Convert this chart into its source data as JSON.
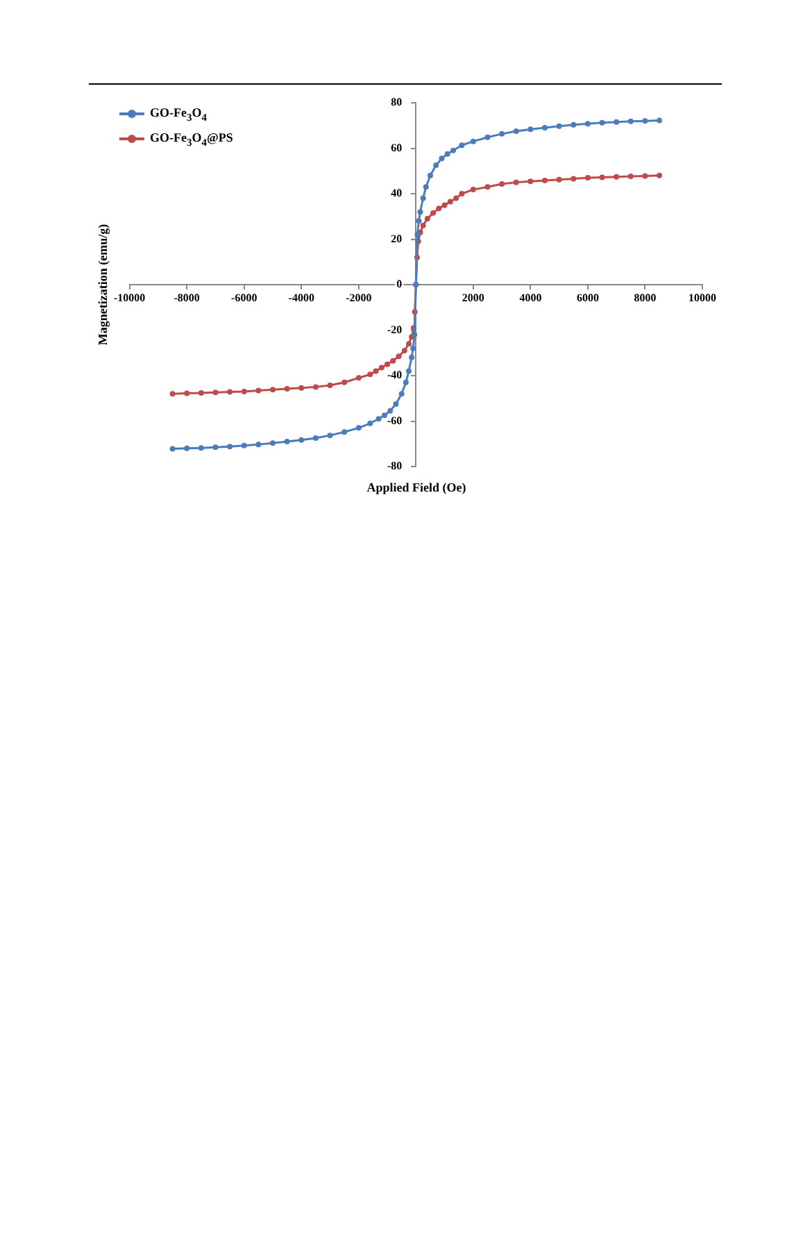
{
  "chart_data": {
    "type": "line",
    "xlabel": "Applied Field (Oe)",
    "ylabel": "Magnetization (emu/g)",
    "xlim": [
      -10000,
      10000
    ],
    "xticks": [
      -10000,
      -8000,
      -6000,
      -4000,
      -2000,
      {
        "value": 0,
        "label": null
      },
      2000,
      4000,
      6000,
      8000,
      10000
    ],
    "ylim": [
      -80,
      80
    ],
    "yticks": [
      -80,
      -60,
      -40,
      -20,
      0,
      20,
      40,
      60,
      80
    ],
    "grid": false,
    "legend": "top left",
    "marker": "circle",
    "line_style": "solid",
    "series": [
      {
        "name": "GO-Fe$_{3}$O$_{4}$",
        "color": "#4a7ebb",
        "x": [
          -8500,
          -8000,
          -7500,
          -7000,
          -6500,
          -6000,
          -5500,
          -5000,
          -4500,
          -4000,
          -3500,
          -3000,
          -2500,
          -2000,
          -1600,
          -1300,
          -1100,
          -900,
          -700,
          -500,
          -350,
          -250,
          -150,
          -100,
          -50,
          0,
          50,
          100,
          150,
          250,
          350,
          500,
          700,
          900,
          1100,
          1300,
          1600,
          2000,
          2500,
          3000,
          3500,
          4000,
          4500,
          5000,
          5500,
          6000,
          6500,
          7000,
          7500,
          8000,
          8500
        ],
        "values": [
          -72.2,
          -72,
          -71.8,
          -71.5,
          -71.2,
          -70.8,
          -70.3,
          -69.7,
          -69,
          -68.3,
          -67.5,
          -66.3,
          -64.8,
          -63,
          -61,
          -59,
          -57.5,
          -55.5,
          -52.5,
          -48,
          -43,
          -38,
          -32,
          -28,
          -22,
          0,
          22,
          28,
          32,
          38,
          43,
          48,
          52.5,
          55.5,
          57.5,
          59,
          61.3,
          63,
          64.8,
          66.3,
          67.5,
          68.3,
          69,
          69.7,
          70.3,
          70.8,
          71.2,
          71.5,
          71.8,
          72,
          72.2
        ]
      },
      {
        "name": "GO-Fe$_{3}$O$_{4}$@PS",
        "color": "#be4b48",
        "x": [
          -8500,
          -8000,
          -7500,
          -7000,
          -6500,
          -6000,
          -5500,
          -5000,
          -4500,
          -4000,
          -3500,
          -3000,
          -2500,
          -2000,
          -1600,
          -1400,
          -1200,
          -1000,
          -800,
          -600,
          -400,
          -250,
          -150,
          -80,
          -40,
          0,
          40,
          80,
          150,
          250,
          400,
          600,
          800,
          1000,
          1200,
          1400,
          1600,
          2000,
          2500,
          3000,
          3500,
          4000,
          4500,
          5000,
          5500,
          6000,
          6500,
          7000,
          7500,
          8000,
          8500
        ],
        "values": [
          -48,
          -47.8,
          -47.6,
          -47.4,
          -47.2,
          -47,
          -46.6,
          -46.2,
          -45.8,
          -45.4,
          -45,
          -44.3,
          -43,
          -41,
          -39.5,
          -38,
          -36.5,
          -35,
          -33.5,
          -31.5,
          -29,
          -26,
          -23,
          -19,
          -12,
          0,
          12,
          19,
          23,
          26,
          29,
          31.5,
          33.5,
          35,
          36.5,
          38,
          40,
          41.8,
          43,
          44.3,
          45,
          45.4,
          45.8,
          46.2,
          46.6,
          47,
          47.2,
          47.4,
          47.6,
          47.8,
          48
        ]
      }
    ]
  }
}
